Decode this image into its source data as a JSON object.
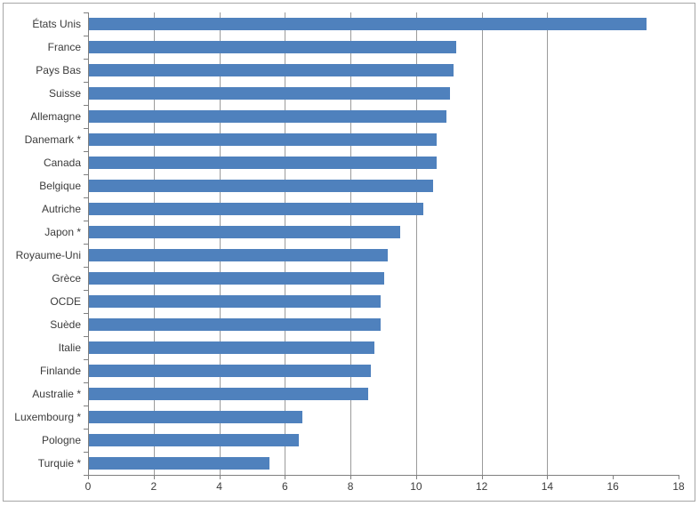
{
  "chart_data": {
    "type": "bar",
    "orientation": "horizontal",
    "title": "",
    "xlabel": "",
    "ylabel": "",
    "categories": [
      "États Unis",
      "France",
      "Pays Bas",
      "Suisse",
      "Allemagne",
      "Danemark *",
      "Canada",
      "Belgique",
      "Autriche",
      "Japon *",
      "Royaume-Uni",
      "Grèce",
      "OCDE",
      "Suède",
      "Italie",
      "Finlande",
      "Australie *",
      "Luxembourg *",
      "Pologne",
      "Turquie *"
    ],
    "values": [
      17.0,
      11.2,
      11.1,
      11.0,
      10.9,
      10.6,
      10.6,
      10.5,
      10.2,
      9.5,
      9.1,
      9.0,
      8.9,
      8.9,
      8.7,
      8.6,
      8.5,
      6.5,
      6.4,
      5.5
    ],
    "xlim": [
      0,
      18
    ],
    "xtick_labels": [
      "0",
      "2",
      "4",
      "6",
      "8",
      "10",
      "12",
      "14",
      "16",
      "18"
    ],
    "xtick_values": [
      0,
      2,
      4,
      6,
      8,
      10,
      12,
      14,
      16,
      18
    ],
    "gridline_values": [
      2,
      4,
      6,
      8,
      10,
      12,
      14
    ],
    "grid": "vertical-major",
    "legend": null,
    "colors": {
      "bar": "#4F81BD",
      "gridline": "#9b9b9b",
      "axis": "#808080",
      "text": "#3b3b3b",
      "frame_border": "#a6a6a6",
      "background": "#ffffff"
    }
  }
}
